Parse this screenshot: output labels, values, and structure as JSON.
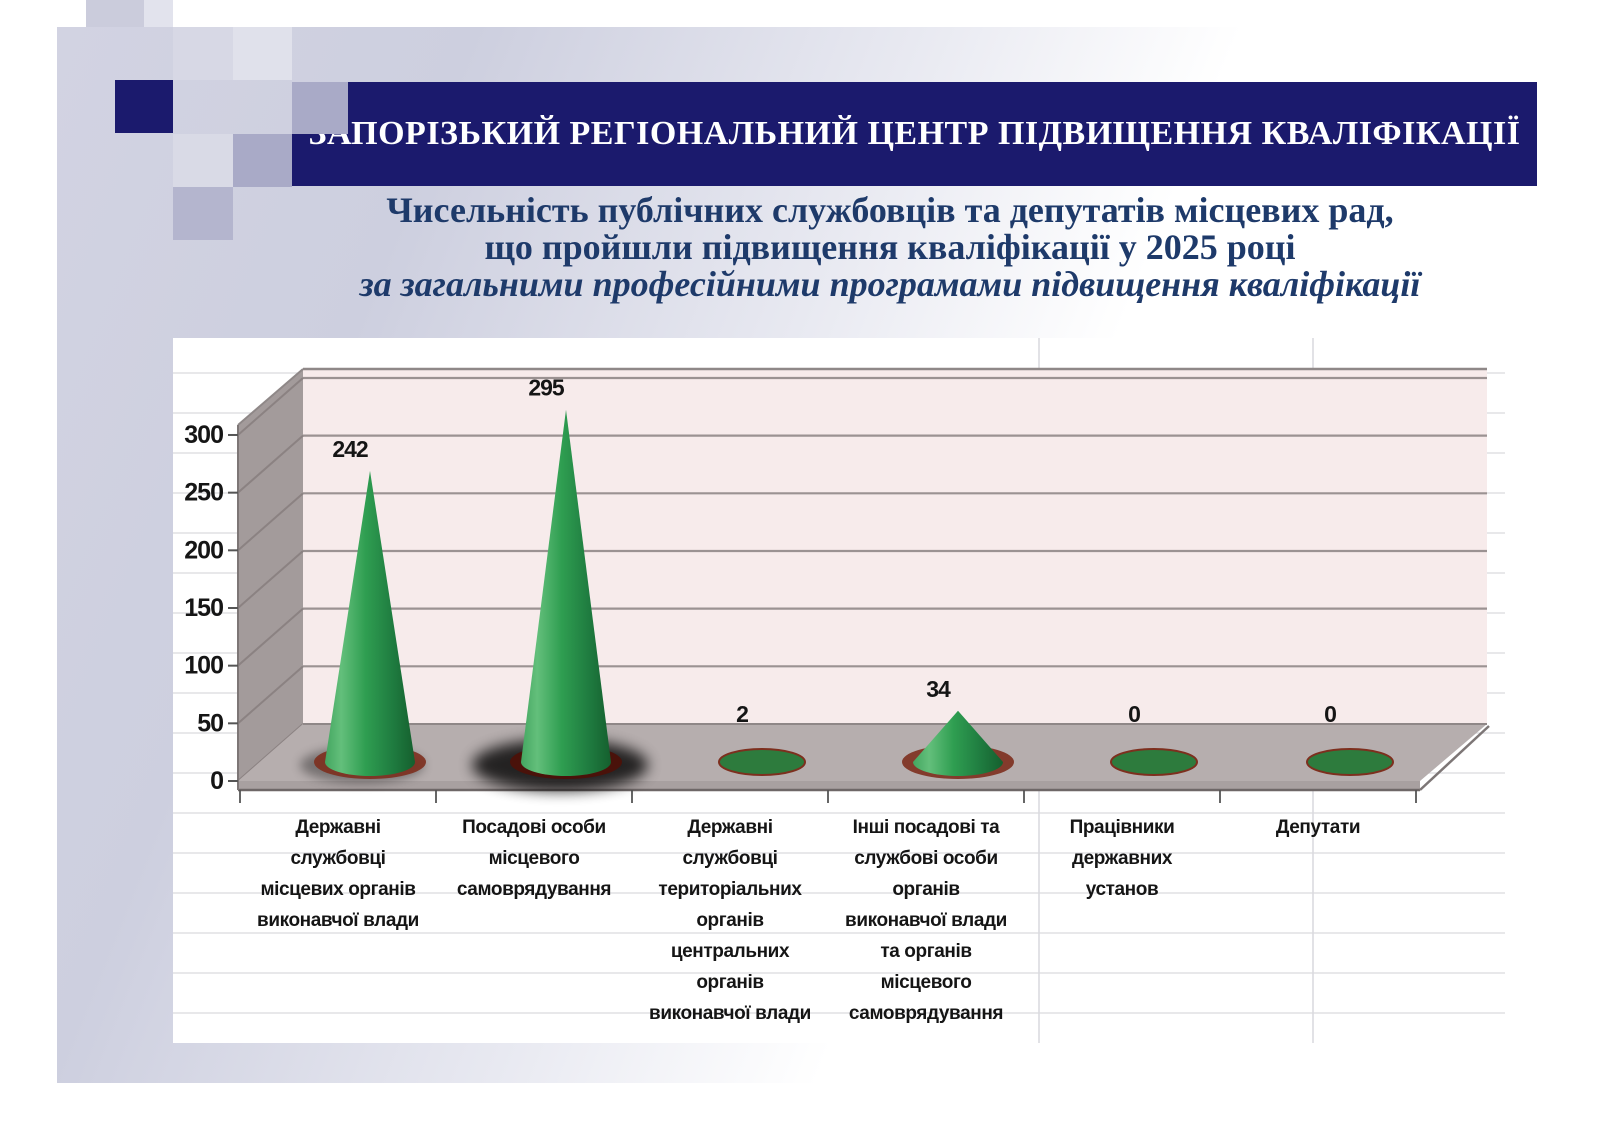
{
  "banner": {
    "text": "ЗАПОРІЗЬКИЙ РЕГІОНАЛЬНИЙ ЦЕНТР ПІДВИЩЕННЯ КВАЛІФІКАЦІЇ"
  },
  "title": {
    "line1": "Чисельність публічних службовців та депутатів місцевих рад,",
    "line2": "що пройшли підвищення кваліфікації у 2025 році",
    "line3_italic": "за загальними професійними програмами підвищення кваліфікації"
  },
  "chart_data": {
    "type": "bar",
    "subtype": "3d-cone",
    "title": "Чисельність публічних службовців та депутатів місцевих рад, що пройшли підвищення кваліфікації у 2025 році за загальними професійними програмами підвищення кваліфікації",
    "categories": [
      "Державні службовці місцевих органів виконавчої влади",
      "Посадові особи місцевого самоврядування",
      "Державні службовці територіальних органів центральних органів виконавчої влади",
      "Інші посадові та службові особи органів виконавчої влади та органів місцевого самоврядування",
      "Працівники державних установ",
      "Депутати"
    ],
    "category_label_lines": [
      [
        "Державні",
        "службовці",
        "місцевих органів",
        "виконавчої влади"
      ],
      [
        "Посадові особи",
        "місцевого",
        "самоврядування"
      ],
      [
        "Державні",
        "службовці",
        "територіальних",
        "органів",
        "центральних",
        "органів",
        "виконавчої влади"
      ],
      [
        "Інші посадові та",
        "службові особи",
        "органів",
        "виконавчої влади",
        "та органів",
        "місцевого",
        "самоврядування"
      ],
      [
        "Працівники",
        "державних",
        "установ"
      ],
      [
        "Депутати"
      ]
    ],
    "values": [
      242,
      295,
      2,
      34,
      0,
      0
    ],
    "data_labels": [
      "242",
      "295",
      "2",
      "34",
      "0",
      "0"
    ],
    "xlabel": "",
    "ylabel": "",
    "ylim": [
      0,
      300
    ],
    "yticks": [
      0,
      50,
      100,
      150,
      200,
      250,
      300
    ],
    "grid": true,
    "legend": "none",
    "colors": {
      "cone_green": "#2f9e51",
      "cone_green_light": "#63bf7b",
      "cone_green_dark": "#155f2e",
      "flat_ellipse_green": "#2d7b3d",
      "ellipse_rim": "#7d2f1e",
      "wall_pink": "#f7ebeb",
      "wall_gridline": "#9b9292",
      "wall_edge": "#8f8888",
      "side_wall_gray": "#a39b9b",
      "floor_gray": "#b6aeae",
      "floor_lip": "#a8a0a0",
      "faint_grid": "#d9d9de",
      "axis_line": "#7d7676",
      "text": "#151515"
    }
  },
  "slide": {
    "accents": {
      "navy": "#1b1a6d",
      "lavender_medium": "#a9aac7",
      "lavender_light": "#d7d8e5",
      "title_blue": "#1e3a6a"
    }
  }
}
